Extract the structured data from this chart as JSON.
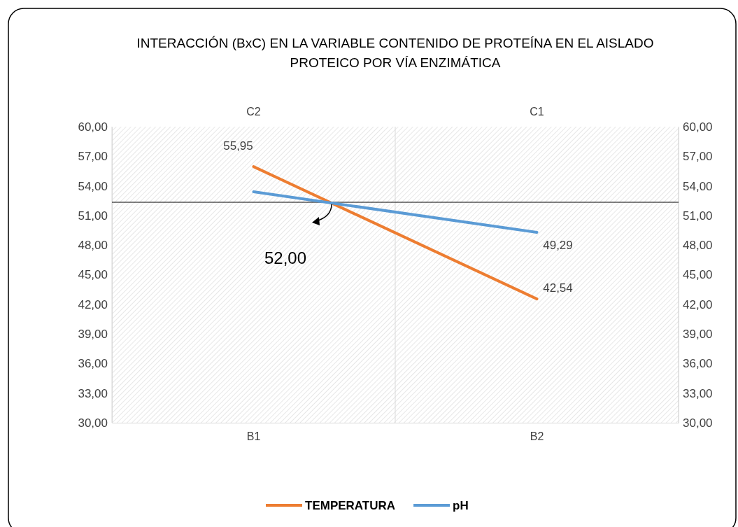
{
  "chart_data": {
    "type": "line",
    "title": "INTERACCIÓN (BxC) EN LA VARIABLE CONTENIDO DE PROTEÍNA EN EL AISLADO PROTEICO POR VÍA ENZIMÁTICA",
    "categories": [
      "B1",
      "B2"
    ],
    "series": [
      {
        "name": "TEMPERATURA",
        "color": "#ed7d31",
        "values": [
          55.95,
          42.54
        ],
        "value_labels": [
          "55,95",
          "42,54"
        ]
      },
      {
        "name": "pH",
        "color": "#5b9bd5",
        "values": [
          53.4,
          49.29
        ],
        "value_labels": [
          null,
          "49,29"
        ]
      }
    ],
    "ylim": [
      30,
      60
    ],
    "yticks": [
      {
        "value": 30,
        "label": "30,00"
      },
      {
        "value": 33,
        "label": "33,00"
      },
      {
        "value": 36,
        "label": "36,00"
      },
      {
        "value": 39,
        "label": "39,00"
      },
      {
        "value": 42,
        "label": "42,00"
      },
      {
        "value": 45,
        "label": "45,00"
      },
      {
        "value": 48,
        "label": "48,00"
      },
      {
        "value": 51,
        "label": "51,00"
      },
      {
        "value": 54,
        "label": "54,00"
      },
      {
        "value": 57,
        "label": "57,00"
      },
      {
        "value": 60,
        "label": "60,00"
      }
    ],
    "y2lim": [
      30,
      60
    ],
    "y2ticks": [
      {
        "value": 30,
        "label": "30,00"
      },
      {
        "value": 33,
        "label": "33,00"
      },
      {
        "value": 36,
        "label": "36,00"
      },
      {
        "value": 39,
        "label": "39,00"
      },
      {
        "value": 42,
        "label": "42,00"
      },
      {
        "value": 45,
        "label": "45,00"
      },
      {
        "value": 48,
        "label": "48,00"
      },
      {
        "value": 51,
        "label": "51,00"
      },
      {
        "value": 54,
        "label": "54,00"
      },
      {
        "value": 57,
        "label": "57,00"
      },
      {
        "value": 60,
        "label": "60,00"
      }
    ],
    "ref_lines": [
      {
        "axis": "y",
        "value": 52.34,
        "color": "#000000"
      }
    ],
    "annotations": [
      "52,00",
      "C2",
      "C1"
    ],
    "grid": "x",
    "legend": "bottom",
    "marker": "none"
  }
}
